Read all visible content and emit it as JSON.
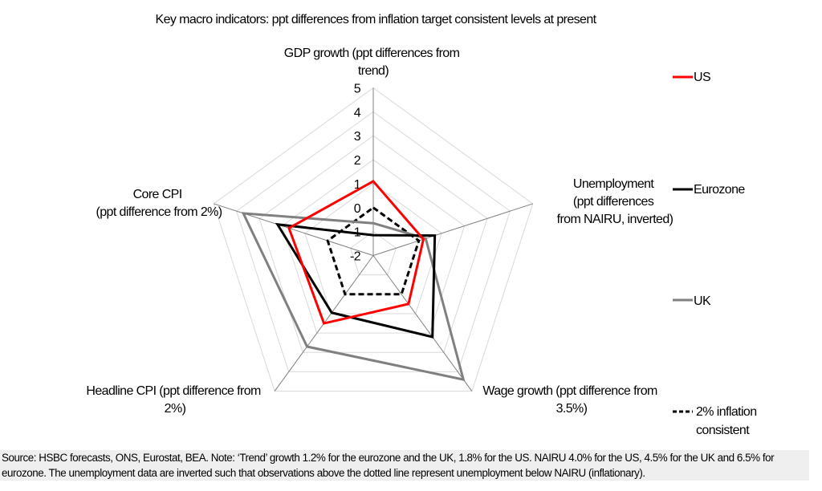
{
  "chart_data": {
    "type": "radar",
    "title": "Key macro indicators: ppt differences from inflation target consistent levels at present",
    "axes": [
      {
        "label_lines": [
          "GDP growth (ppt differences from",
          "trend)"
        ]
      },
      {
        "label_lines": [
          "Unemployment",
          "(ppt differences",
          "from NAIRU, inverted)"
        ]
      },
      {
        "label_lines": [
          "Wage growth (ppt difference from",
          "3.5%)"
        ]
      },
      {
        "label_lines": [
          "Headline CPI (ppt difference from",
          "2%)"
        ]
      },
      {
        "label_lines": [
          "Core CPI",
          "(ppt difference from 2%)"
        ]
      }
    ],
    "rlim": [
      -2,
      5
    ],
    "ticks": [
      "5",
      "4",
      "3",
      "2",
      "1",
      "0",
      "-1",
      "-2"
    ],
    "tick_values": [
      5,
      4,
      3,
      2,
      1,
      0,
      -1,
      -2
    ],
    "grid": true,
    "legend_position": "right",
    "series": [
      {
        "name": "US",
        "color": "#ff0000",
        "dash": false,
        "values": [
          1.1,
          0.2,
          0.5,
          1.5,
          1.7
        ]
      },
      {
        "name": "Eurozone",
        "color": "#000000",
        "dash": false,
        "values": [
          -1.15,
          0.7,
          2.2,
          0.95,
          2.2
        ]
      },
      {
        "name": "UK",
        "color": "#808080",
        "dash": false,
        "values": [
          -0.65,
          0.3,
          4.4,
          2.7,
          3.7
        ]
      },
      {
        "name_lines": [
          "2% inflation",
          "consistent"
        ],
        "color": "#000000",
        "dash": true,
        "values": [
          0,
          0,
          0,
          0,
          0
        ]
      }
    ]
  },
  "footer": {
    "note": "Source: HSBC forecasts, ONS, Eurostat, BEA. Note: ‘Trend’ growth 1.2% for the eurozone and the UK, 1.8% for the US. NAIRU 4.0% for the US, 4.5% for the UK and 6.5% for eurozone. The unemployment data are inverted such that observations above the dotted line represent unemployment below NAIRU (inflationary)."
  }
}
